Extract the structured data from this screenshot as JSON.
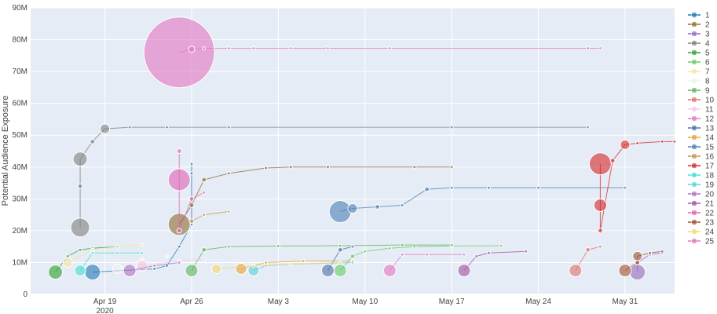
{
  "chart_data": {
    "type": "scatter",
    "title": "",
    "xlabel": "",
    "ylabel": "Potential Audience Exposure",
    "x_ticks": [
      {
        "date": "2020-04-19",
        "label": "Apr 19",
        "sublabel": "2020"
      },
      {
        "date": "2020-04-26",
        "label": "Apr 26",
        "sublabel": ""
      },
      {
        "date": "2020-05-03",
        "label": "May 3",
        "sublabel": ""
      },
      {
        "date": "2020-05-10",
        "label": "May 10",
        "sublabel": ""
      },
      {
        "date": "2020-05-17",
        "label": "May 17",
        "sublabel": ""
      },
      {
        "date": "2020-05-24",
        "label": "May 24",
        "sublabel": ""
      },
      {
        "date": "2020-05-31",
        "label": "May 31",
        "sublabel": ""
      }
    ],
    "xlim": [
      "2020-04-13",
      "2020-06-04"
    ],
    "y_ticks": [
      {
        "value": 0,
        "label": "0"
      },
      {
        "value": 10000000,
        "label": "10M"
      },
      {
        "value": 20000000,
        "label": "20M"
      },
      {
        "value": 30000000,
        "label": "30M"
      },
      {
        "value": 40000000,
        "label": "40M"
      },
      {
        "value": 50000000,
        "label": "50M"
      },
      {
        "value": 60000000,
        "label": "60M"
      },
      {
        "value": 70000000,
        "label": "70M"
      },
      {
        "value": 80000000,
        "label": "80M"
      },
      {
        "value": 90000000,
        "label": "90M"
      }
    ],
    "ylim": [
      0,
      90000000
    ],
    "grid": true,
    "legend_position": "right",
    "plot_background": "#e5ecf6",
    "series": [
      {
        "name": "1",
        "color": "#1f77b4",
        "points": [
          [
            "2020-04-18",
            7000000,
            10
          ],
          [
            "2020-04-23",
            8000000,
            2
          ],
          [
            "2020-04-24",
            9000000,
            2
          ],
          [
            "2020-04-25",
            15000000,
            2
          ],
          [
            "2020-04-26",
            22000000,
            2
          ],
          [
            "2020-04-26",
            38000000,
            2
          ],
          [
            "2020-04-26",
            41000000,
            2
          ]
        ]
      },
      {
        "name": "2",
        "color": "#8c6d31",
        "points": [
          [
            "2020-04-25",
            22000000,
            14
          ],
          [
            "2020-04-26",
            28000000,
            3
          ],
          [
            "2020-04-27",
            36000000,
            3
          ],
          [
            "2020-04-29",
            38000000,
            2
          ],
          [
            "2020-05-02",
            39700000,
            2
          ],
          [
            "2020-05-04",
            40000000,
            2
          ],
          [
            "2020-05-07",
            40000000,
            2
          ],
          [
            "2020-05-14",
            40000000,
            2
          ],
          [
            "2020-05-17",
            40000000,
            2
          ]
        ]
      },
      {
        "name": "3",
        "color": "#9467bd",
        "points": [
          [
            "2020-06-01",
            7000000,
            10
          ],
          [
            "2020-06-01",
            10000000,
            2
          ],
          [
            "2020-06-02",
            12500000,
            2
          ],
          [
            "2020-06-03",
            13000000,
            2
          ]
        ]
      },
      {
        "name": "4",
        "color": "#7f7f7f",
        "points": [
          [
            "2020-04-17",
            21000000,
            12
          ],
          [
            "2020-04-17",
            34000000,
            3
          ],
          [
            "2020-04-17",
            42500000,
            9
          ],
          [
            "2020-04-18",
            48000000,
            3
          ],
          [
            "2020-04-19",
            52000000,
            6
          ],
          [
            "2020-04-21",
            52500000,
            2
          ],
          [
            "2020-04-24",
            52500000,
            2
          ],
          [
            "2020-04-29",
            52500000,
            2
          ],
          [
            "2020-05-17",
            52500000,
            2
          ],
          [
            "2020-05-28",
            52500000,
            2
          ]
        ]
      },
      {
        "name": "5",
        "color": "#2ca02c",
        "points": [
          [
            "2020-04-15",
            7000000,
            9
          ],
          [
            "2020-04-16",
            12000000,
            2
          ],
          [
            "2020-04-17",
            14000000,
            2
          ],
          [
            "2020-04-18",
            14500000,
            2
          ],
          [
            "2020-04-20",
            15000000,
            2
          ]
        ]
      },
      {
        "name": "6",
        "color": "#66cc66",
        "points": [
          [
            "2020-05-08",
            7500000,
            8
          ],
          [
            "2020-05-09",
            12000000,
            3
          ],
          [
            "2020-05-10",
            13500000,
            2
          ],
          [
            "2020-05-12",
            14500000,
            2
          ],
          [
            "2020-05-14",
            15000000,
            2
          ],
          [
            "2020-05-17",
            15200000,
            2
          ],
          [
            "2020-05-21",
            15300000,
            2
          ]
        ]
      },
      {
        "name": "7",
        "color": "#f5e6a0",
        "points": [
          [
            "2020-04-16",
            10000000,
            6
          ],
          [
            "2020-04-18",
            14000000,
            2
          ],
          [
            "2020-04-20",
            15000000,
            2
          ],
          [
            "2020-04-22",
            15500000,
            2
          ]
        ]
      },
      {
        "name": "8",
        "color": "#f0f0f0",
        "points": [
          [
            "2020-04-20",
            8000000,
            6
          ],
          [
            "2020-04-22",
            11000000,
            2
          ],
          [
            "2020-04-24",
            12000000,
            2
          ]
        ]
      },
      {
        "name": "9",
        "color": "#5ab45a",
        "points": [
          [
            "2020-04-26",
            7500000,
            8
          ],
          [
            "2020-04-27",
            14000000,
            3
          ],
          [
            "2020-04-29",
            15000000,
            2
          ],
          [
            "2020-05-03",
            15200000,
            2
          ],
          [
            "2020-05-08",
            15300000,
            2
          ],
          [
            "2020-05-13",
            15500000,
            2
          ],
          [
            "2020-05-17",
            15500000,
            2
          ]
        ]
      },
      {
        "name": "10",
        "color": "#e07070",
        "points": [
          [
            "2020-05-27",
            7500000,
            8
          ],
          [
            "2020-05-28",
            14000000,
            3
          ],
          [
            "2020-05-29",
            15000000,
            2
          ]
        ]
      },
      {
        "name": "11",
        "color": "#f7c6e0",
        "points": [
          [
            "2020-04-22",
            9000000,
            7
          ],
          [
            "2020-04-25",
            10500000,
            2
          ],
          [
            "2020-04-27",
            11000000,
            2
          ]
        ]
      },
      {
        "name": "12",
        "color": "#e377c2",
        "points": [
          [
            "2020-05-12",
            7500000,
            8
          ],
          [
            "2020-05-13",
            12500000,
            2
          ],
          [
            "2020-05-15",
            12500000,
            2
          ],
          [
            "2020-05-18",
            12500000,
            2
          ]
        ]
      },
      {
        "name": "13",
        "color": "#4a6fa5",
        "points": [
          [
            "2020-05-07",
            7500000,
            8
          ],
          [
            "2020-05-08",
            14000000,
            3
          ],
          [
            "2020-05-09",
            15000000,
            2
          ]
        ]
      },
      {
        "name": "14",
        "color": "#e8a030",
        "points": [
          [
            "2020-04-30",
            8000000,
            7
          ],
          [
            "2020-05-02",
            10000000,
            2
          ],
          [
            "2020-05-05",
            10500000,
            2
          ],
          [
            "2020-05-09",
            10500000,
            2
          ]
        ]
      },
      {
        "name": "15",
        "color": "#4a7fb5",
        "points": [
          [
            "2020-05-08",
            26000000,
            14
          ],
          [
            "2020-05-09",
            27000000,
            6
          ],
          [
            "2020-05-11",
            27500000,
            3
          ],
          [
            "2020-05-13",
            28000000,
            2
          ],
          [
            "2020-05-15",
            33000000,
            3
          ],
          [
            "2020-05-17",
            33500000,
            2
          ],
          [
            "2020-05-20",
            33500000,
            2
          ],
          [
            "2020-05-24",
            33500000,
            2
          ],
          [
            "2020-05-31",
            33500000,
            2
          ]
        ]
      },
      {
        "name": "16",
        "color": "#c09850",
        "points": [
          [
            "2020-04-26",
            23000000,
            3
          ],
          [
            "2020-04-27",
            25000000,
            2
          ],
          [
            "2020-04-29",
            26000000,
            2
          ]
        ]
      },
      {
        "name": "17",
        "color": "#d62728",
        "points": [
          [
            "2020-05-29",
            41000000,
            14
          ],
          [
            "2020-05-29",
            28000000,
            8
          ],
          [
            "2020-05-29",
            20000000,
            3
          ],
          [
            "2020-05-30",
            42000000,
            3
          ],
          [
            "2020-05-31",
            47000000,
            6
          ],
          [
            "2020-06-01",
            47500000,
            2
          ],
          [
            "2020-06-03",
            48000000,
            2
          ],
          [
            "2020-06-04",
            48000000,
            2
          ]
        ]
      },
      {
        "name": "18",
        "color": "#40e0d0",
        "points": [
          [
            "2020-04-17",
            7500000,
            7
          ],
          [
            "2020-04-18",
            13000000,
            2
          ],
          [
            "2020-04-20",
            13000000,
            2
          ],
          [
            "2020-04-22",
            13000000,
            2
          ]
        ]
      },
      {
        "name": "19",
        "color": "#5ad0d8",
        "points": [
          [
            "2020-05-01",
            7500000,
            7
          ],
          [
            "2020-05-02",
            9000000,
            2
          ],
          [
            "2020-05-04",
            9500000,
            2
          ],
          [
            "2020-05-09",
            10000000,
            2
          ]
        ]
      },
      {
        "name": "20",
        "color": "#b070c0",
        "points": [
          [
            "2020-04-21",
            7500000,
            8
          ],
          [
            "2020-04-23",
            9000000,
            2
          ],
          [
            "2020-04-25",
            10000000,
            2
          ]
        ]
      },
      {
        "name": "21",
        "color": "#a050a0",
        "points": [
          [
            "2020-05-18",
            7500000,
            8
          ],
          [
            "2020-05-19",
            12000000,
            2
          ],
          [
            "2020-05-20",
            13000000,
            2
          ],
          [
            "2020-05-23",
            13500000,
            2
          ]
        ]
      },
      {
        "name": "22",
        "color": "#e060b0",
        "points": [
          [
            "2020-04-25",
            36000000,
            14
          ],
          [
            "2020-04-25",
            45000000,
            3
          ],
          [
            "2020-04-25",
            20000000,
            3
          ],
          [
            "2020-04-26",
            30000000,
            3
          ],
          [
            "2020-04-27",
            32000000,
            2
          ]
        ]
      },
      {
        "name": "23",
        "color": "#a0522d",
        "points": [
          [
            "2020-05-31",
            7500000,
            8
          ],
          [
            "2020-06-01",
            10000000,
            3
          ],
          [
            "2020-06-01",
            12000000,
            6
          ],
          [
            "2020-06-02",
            13000000,
            2
          ],
          [
            "2020-06-03",
            13500000,
            2
          ]
        ]
      },
      {
        "name": "24",
        "color": "#f5d76e",
        "points": [
          [
            "2020-04-28",
            8000000,
            6
          ],
          [
            "2020-05-01",
            9000000,
            2
          ],
          [
            "2020-05-04",
            9500000,
            2
          ],
          [
            "2020-05-08",
            10000000,
            2
          ]
        ]
      },
      {
        "name": "25",
        "color": "#e377c2",
        "points": [
          [
            "2020-04-25",
            76000000,
            45
          ],
          [
            "2020-04-26",
            77000000,
            4
          ],
          [
            "2020-04-27",
            77300000,
            2
          ],
          [
            "2020-04-29",
            77300000,
            2
          ],
          [
            "2020-05-01",
            77300000,
            2
          ],
          [
            "2020-05-04",
            77300000,
            2
          ],
          [
            "2020-05-07",
            77300000,
            2
          ],
          [
            "2020-05-12",
            77300000,
            2
          ],
          [
            "2020-05-28",
            77300000,
            2
          ],
          [
            "2020-05-29",
            77300000,
            2
          ]
        ]
      }
    ]
  }
}
